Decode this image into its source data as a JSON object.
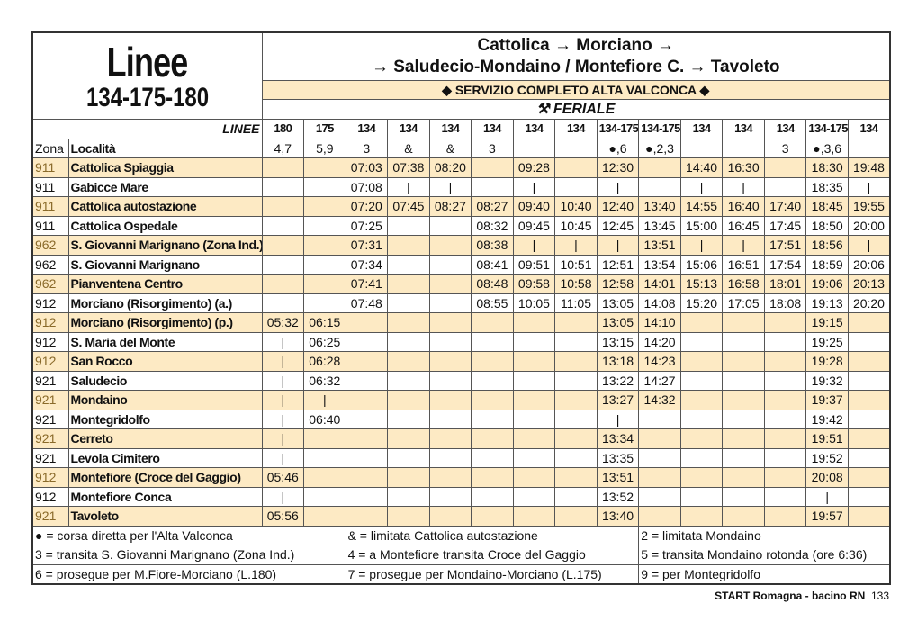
{
  "header": {
    "title_left": "Linee",
    "lines_number": "134-175-180",
    "title_line1": "Cattolica → Morciano →",
    "title_line2": "→ Saludecio-Mondaino / Montefiore C. → Tavoleto",
    "band": "◆ SERVIZIO COMPLETO ALTA VALCONCA ◆",
    "day": "FERIALE"
  },
  "table": {
    "linee_label": "LINEE",
    "zona_label": "Zona",
    "localita_label": "Località",
    "lines": [
      "180",
      "175",
      "134",
      "134",
      "134",
      "134",
      "134",
      "134",
      "134-175",
      "134-175",
      "134",
      "134",
      "134",
      "134-175",
      "134"
    ],
    "notes": [
      "4,7",
      "5,9",
      "3",
      "&",
      "&",
      "3",
      null,
      null,
      "●,6",
      "●,2,3",
      null,
      null,
      "3",
      "●,3,6",
      null
    ],
    "rows": [
      {
        "zona": "911",
        "localita": "Cattolica Spiaggia",
        "times": [
          null,
          null,
          "07:03",
          "07:38",
          "08:20",
          null,
          "09:28",
          null,
          "12:30",
          null,
          "14:40",
          "16:30",
          null,
          "18:30",
          "19:48"
        ]
      },
      {
        "zona": "911",
        "localita": "Gabicce Mare",
        "times": [
          null,
          null,
          "07:08",
          "|",
          "|",
          null,
          "|",
          null,
          "|",
          null,
          "|",
          "|",
          null,
          "18:35",
          "|"
        ]
      },
      {
        "zona": "911",
        "localita": "Cattolica autostazione",
        "times": [
          null,
          null,
          "07:20",
          "07:45",
          "08:27",
          "08:27",
          "09:40",
          "10:40",
          "12:40",
          "13:40",
          "14:55",
          "16:40",
          "17:40",
          "18:45",
          "19:55"
        ]
      },
      {
        "zona": "911",
        "localita": "Cattolica Ospedale",
        "times": [
          null,
          null,
          "07:25",
          null,
          null,
          "08:32",
          "09:45",
          "10:45",
          "12:45",
          "13:45",
          "15:00",
          "16:45",
          "17:45",
          "18:50",
          "20:00"
        ]
      },
      {
        "zona": "962",
        "localita": "S. Giovanni Marignano (Zona Ind.)",
        "times": [
          null,
          null,
          "07:31",
          null,
          null,
          "08:38",
          "|",
          "|",
          "|",
          "13:51",
          "|",
          "|",
          "17:51",
          "18:56",
          "|"
        ]
      },
      {
        "zona": "962",
        "localita": "S. Giovanni Marignano",
        "times": [
          null,
          null,
          "07:34",
          null,
          null,
          "08:41",
          "09:51",
          "10:51",
          "12:51",
          "13:54",
          "15:06",
          "16:51",
          "17:54",
          "18:59",
          "20:06"
        ]
      },
      {
        "zona": "962",
        "localita": "Pianventena Centro",
        "times": [
          null,
          null,
          "07:41",
          null,
          null,
          "08:48",
          "09:58",
          "10:58",
          "12:58",
          "14:01",
          "15:13",
          "16:58",
          "18:01",
          "19:06",
          "20:13"
        ]
      },
      {
        "zona": "912",
        "localita": "Morciano (Risorgimento) (a.)",
        "times": [
          null,
          null,
          "07:48",
          null,
          null,
          "08:55",
          "10:05",
          "11:05",
          "13:05",
          "14:08",
          "15:20",
          "17:05",
          "18:08",
          "19:13",
          "20:20"
        ]
      },
      {
        "zona": "912",
        "localita": "Morciano (Risorgimento) (p.)",
        "times": [
          "05:32",
          "06:15",
          null,
          null,
          null,
          null,
          null,
          null,
          "13:05",
          "14:10",
          null,
          null,
          null,
          "19:15",
          null
        ]
      },
      {
        "zona": "912",
        "localita": "S. Maria del Monte",
        "times": [
          "|",
          "06:25",
          null,
          null,
          null,
          null,
          null,
          null,
          "13:15",
          "14:20",
          null,
          null,
          null,
          "19:25",
          null
        ]
      },
      {
        "zona": "912",
        "localita": "San Rocco",
        "times": [
          "|",
          "06:28",
          null,
          null,
          null,
          null,
          null,
          null,
          "13:18",
          "14:23",
          null,
          null,
          null,
          "19:28",
          null
        ]
      },
      {
        "zona": "921",
        "localita": "Saludecio",
        "times": [
          "|",
          "06:32",
          null,
          null,
          null,
          null,
          null,
          null,
          "13:22",
          "14:27",
          null,
          null,
          null,
          "19:32",
          null
        ]
      },
      {
        "zona": "921",
        "localita": "Mondaino",
        "times": [
          "|",
          "|",
          null,
          null,
          null,
          null,
          null,
          null,
          "13:27",
          "14:32",
          null,
          null,
          null,
          "19:37",
          null
        ]
      },
      {
        "zona": "921",
        "localita": "Montegridolfo",
        "times": [
          "|",
          "06:40",
          null,
          null,
          null,
          null,
          null,
          null,
          "|",
          null,
          null,
          null,
          null,
          "19:42",
          null
        ]
      },
      {
        "zona": "921",
        "localita": "Cerreto",
        "times": [
          "|",
          null,
          null,
          null,
          null,
          null,
          null,
          null,
          "13:34",
          null,
          null,
          null,
          null,
          "19:51",
          null
        ]
      },
      {
        "zona": "921",
        "localita": "Levola Cimitero",
        "times": [
          "|",
          null,
          null,
          null,
          null,
          null,
          null,
          null,
          "13:35",
          null,
          null,
          null,
          null,
          "19:52",
          null
        ]
      },
      {
        "zona": "912",
        "localita": "Montefiore (Croce del Gaggio)",
        "times": [
          "05:46",
          null,
          null,
          null,
          null,
          null,
          null,
          null,
          "13:51",
          null,
          null,
          null,
          null,
          "20:08",
          null
        ]
      },
      {
        "zona": "912",
        "localita": "Montefiore Conca",
        "times": [
          "|",
          null,
          null,
          null,
          null,
          null,
          null,
          null,
          "13:52",
          null,
          null,
          null,
          null,
          "|",
          null
        ]
      },
      {
        "zona": "921",
        "localita": "Tavoleto",
        "times": [
          "05:56",
          null,
          null,
          null,
          null,
          null,
          null,
          null,
          "13:40",
          null,
          null,
          null,
          null,
          "19:57",
          null
        ]
      }
    ]
  },
  "legend": [
    [
      "● = corsa diretta per l'Alta Valconca",
      "& = limitata Cattolica autostazione",
      "2 = limitata Mondaino"
    ],
    [
      "3 = transita S. Giovanni Marignano (Zona Ind.)",
      "4 = a Montefiore transita Croce del Gaggio",
      "5 = transita Mondaino rotonda (ore 6:36)"
    ],
    [
      "6 = prosegue per M.Fiore-Morciano (L.180)",
      "7 = prosegue per Mondaino-Morciano (L.175)",
      "9 = per Montegridolfo"
    ]
  ],
  "footer": {
    "publisher": "START Romagna - bacino RN",
    "page": "133"
  }
}
